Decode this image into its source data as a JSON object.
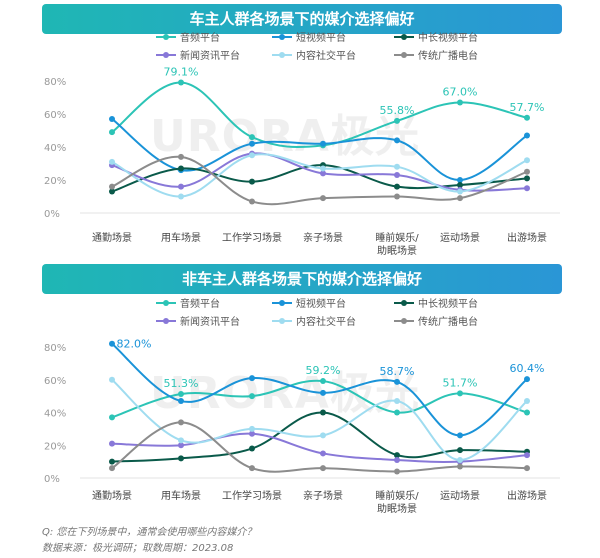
{
  "colors": {
    "音频平台": "#2cc4b6",
    "短视频平台": "#1a93d8",
    "中长视频平台": "#0a5a4a",
    "新闻资讯平台": "#8878d8",
    "内容社交平台": "#9fdcf0",
    "传统广播电台": "#8c8c8c"
  },
  "watermark": "URORA极光",
  "footer": {
    "question": "Q:   您在下列场景中，通常会使用哪些内容媒介？",
    "source": "数据来源：极光调研；取数周期：2023.08"
  },
  "chart_data": [
    {
      "type": "line",
      "title": "车主人群各场景下的媒介选择偏好",
      "categories": [
        "通勤场景",
        "用车场景",
        "工作学习场景",
        "亲子场景",
        "睡前娱乐/助眠场景",
        "运动场景",
        "出游场景"
      ],
      "category_lines": [
        [
          "通勤场景"
        ],
        [
          "用车场景"
        ],
        [
          "工作学习场景"
        ],
        [
          "亲子场景"
        ],
        [
          "睡前娱乐/",
          "助眠场景"
        ],
        [
          "运动场景"
        ],
        [
          "出游场景"
        ]
      ],
      "yticks": [
        "0%",
        "20%",
        "40%",
        "60%",
        "80%"
      ],
      "ylim": [
        0,
        80
      ],
      "legend": [
        "音频平台",
        "短视频平台",
        "中长视频平台",
        "新闻资讯平台",
        "内容社交平台",
        "传统广播电台"
      ],
      "series": [
        {
          "name": "音频平台",
          "values": [
            49,
            79.1,
            46,
            41,
            55.8,
            67.0,
            57.7
          ]
        },
        {
          "name": "短视频平台",
          "values": [
            57,
            26,
            42,
            42,
            44,
            20,
            47
          ]
        },
        {
          "name": "中长视频平台",
          "values": [
            13,
            27,
            19,
            29,
            16,
            17,
            21
          ]
        },
        {
          "name": "新闻资讯平台",
          "values": [
            29,
            16,
            36,
            24,
            23,
            14,
            15
          ]
        },
        {
          "name": "内容社交平台",
          "values": [
            31,
            10,
            35,
            27,
            28,
            13,
            32
          ]
        },
        {
          "name": "传统广播电台",
          "values": [
            16,
            34,
            7,
            9,
            10,
            9,
            25
          ]
        }
      ],
      "annotations": [
        {
          "category": "用车场景",
          "series": "音频平台",
          "label": "79.1%"
        },
        {
          "category": "睡前娱乐/助眠场景",
          "series": "音频平台",
          "label": "55.8%"
        },
        {
          "category": "运动场景",
          "series": "音频平台",
          "label": "67.0%"
        },
        {
          "category": "出游场景",
          "series": "音频平台",
          "label": "57.7%"
        }
      ]
    },
    {
      "type": "line",
      "title": "非车主人群各场景下的媒介选择偏好",
      "categories": [
        "通勤场景",
        "用车场景",
        "工作学习场景",
        "亲子场景",
        "睡前娱乐/助眠场景",
        "运动场景",
        "出游场景"
      ],
      "category_lines": [
        [
          "通勤场景"
        ],
        [
          "用车场景"
        ],
        [
          "工作学习场景"
        ],
        [
          "亲子场景"
        ],
        [
          "睡前娱乐/",
          "助眠场景"
        ],
        [
          "运动场景"
        ],
        [
          "出游场景"
        ]
      ],
      "yticks": [
        "0%",
        "20%",
        "40%",
        "60%",
        "80%"
      ],
      "ylim": [
        0,
        80
      ],
      "legend": [
        "音频平台",
        "短视频平台",
        "中长视频平台",
        "新闻资讯平台",
        "内容社交平台",
        "传统广播电台"
      ],
      "series": [
        {
          "name": "音频平台",
          "values": [
            37,
            51.3,
            50,
            59.2,
            40,
            51.7,
            40
          ]
        },
        {
          "name": "短视频平台",
          "values": [
            82.0,
            47,
            61,
            52,
            58.7,
            26,
            60.4
          ]
        },
        {
          "name": "中长视频平台",
          "values": [
            10,
            12,
            18,
            40,
            14,
            17,
            16
          ]
        },
        {
          "name": "新闻资讯平台",
          "values": [
            21,
            20,
            27,
            15,
            11,
            10,
            14
          ]
        },
        {
          "name": "内容社交平台",
          "values": [
            60,
            23,
            30,
            26,
            47,
            11,
            47
          ]
        },
        {
          "name": "传统广播电台",
          "values": [
            6,
            34,
            6,
            6,
            4,
            7,
            6
          ]
        }
      ],
      "annotations": [
        {
          "category": "通勤场景",
          "series": "短视频平台",
          "label": "82.0%"
        },
        {
          "category": "用车场景",
          "series": "音频平台",
          "label": "51.3%"
        },
        {
          "category": "亲子场景",
          "series": "音频平台",
          "label": "59.2%"
        },
        {
          "category": "睡前娱乐/助眠场景",
          "series": "短视频平台",
          "label": "58.7%"
        },
        {
          "category": "运动场景",
          "series": "音频平台",
          "label": "51.7%"
        },
        {
          "category": "出游场景",
          "series": "短视频平台",
          "label": "60.4%"
        }
      ]
    }
  ]
}
